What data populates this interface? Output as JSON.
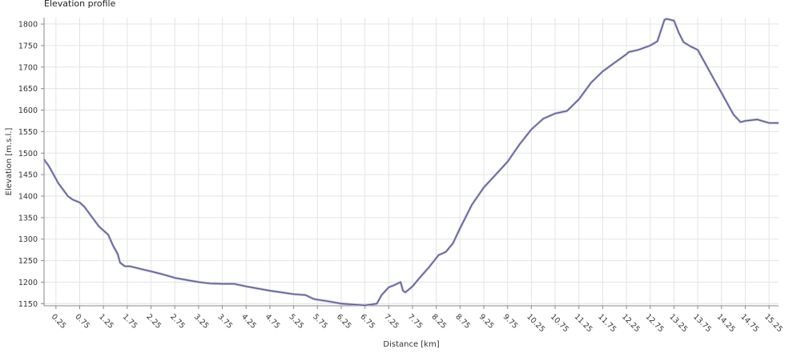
{
  "chart_data": {
    "type": "line",
    "title": "Elevation profile",
    "xlabel": "Distance [km]",
    "ylabel": "Elevation [m.s.l.]",
    "xlim": [
      0,
      15.45
    ],
    "ylim": [
      1145,
      1815
    ],
    "grid": true,
    "line_color": "#5b5b92",
    "y_ticks": [
      1150,
      1200,
      1250,
      1300,
      1350,
      1400,
      1450,
      1500,
      1550,
      1600,
      1650,
      1700,
      1750,
      1800
    ],
    "x_ticks": [
      "0.25",
      "0.75",
      "1.25",
      "1.75",
      "2.25",
      "2.75",
      "3.25",
      "3.75",
      "4.25",
      "4.75",
      "5.25",
      "5.75",
      "6.25",
      "6.75",
      "7.25",
      "7.75",
      "8.25",
      "8.75",
      "9.25",
      "9.75",
      "10.25",
      "10.75",
      "11.25",
      "11.75",
      "12.25",
      "12.75",
      "13.25",
      "13.75",
      "14.25",
      "14.75",
      "15.25"
    ],
    "series": [
      {
        "x": [
          0,
          0.1,
          0.2,
          0.3,
          0.4,
          0.5,
          0.6,
          0.75,
          0.85,
          0.95,
          1.05,
          1.15,
          1.25,
          1.35,
          1.45,
          1.55,
          1.6,
          1.7,
          1.8,
          1.95,
          2.05,
          2.25,
          2.5,
          2.75,
          3.0,
          3.25,
          3.5,
          3.75,
          4.0,
          4.25,
          4.5,
          4.75,
          5.0,
          5.25,
          5.5,
          5.65,
          5.7,
          6.0,
          6.25,
          6.5,
          6.75,
          7.0,
          7.1,
          7.25,
          7.35,
          7.5,
          7.55,
          7.6,
          7.75,
          7.9,
          8.1,
          8.3,
          8.45,
          8.6,
          8.75,
          9.0,
          9.25,
          9.5,
          9.75,
          10.0,
          10.25,
          10.5,
          10.75,
          11.0,
          11.25,
          11.5,
          11.75,
          12.0,
          12.25,
          12.3,
          12.5,
          12.75,
          12.9,
          13.05,
          13.1,
          13.25,
          13.35,
          13.45,
          13.6,
          13.75,
          13.85,
          14.0,
          14.25,
          14.5,
          14.65,
          14.75,
          15.0,
          15.25,
          15.35,
          15.45
        ],
        "y": [
          1485,
          1470,
          1450,
          1430,
          1415,
          1400,
          1392,
          1385,
          1375,
          1360,
          1345,
          1330,
          1320,
          1310,
          1285,
          1265,
          1245,
          1237,
          1237,
          1233,
          1230,
          1225,
          1218,
          1210,
          1205,
          1200,
          1197,
          1196,
          1196,
          1190,
          1185,
          1180,
          1176,
          1172,
          1170,
          1162,
          1160,
          1155,
          1150,
          1148,
          1146,
          1150,
          1170,
          1188,
          1192,
          1200,
          1180,
          1176,
          1190,
          1210,
          1235,
          1263,
          1270,
          1290,
          1325,
          1380,
          1420,
          1450,
          1480,
          1520,
          1555,
          1580,
          1592,
          1598,
          1625,
          1663,
          1690,
          1710,
          1730,
          1735,
          1740,
          1750,
          1760,
          1810,
          1812,
          1808,
          1780,
          1758,
          1748,
          1740,
          1720,
          1690,
          1640,
          1590,
          1572,
          1575,
          1578,
          1570,
          1570,
          1570
        ]
      }
    ]
  }
}
